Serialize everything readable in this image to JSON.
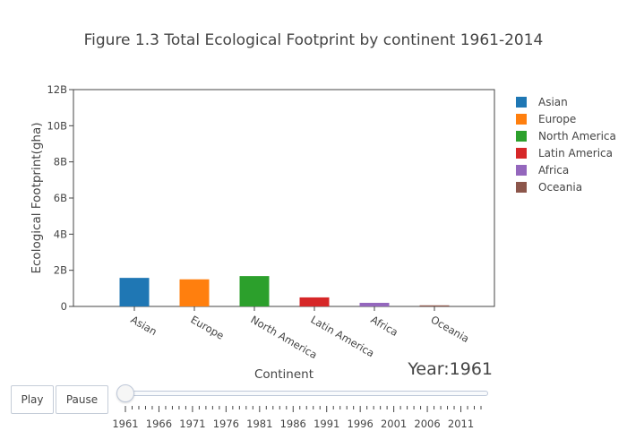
{
  "chart_data": {
    "type": "bar",
    "title": "Figure 1.3 Total Ecological Footprint by continent 1961-2014",
    "xlabel": "Continent",
    "ylabel": "Ecological Footprint(gha)",
    "categories": [
      "Asian",
      "Europe",
      "North America",
      "Latin America",
      "Africa",
      "Oceania"
    ],
    "values": [
      1.58,
      1.5,
      1.68,
      0.5,
      0.2,
      0.06
    ],
    "value_unit": "B",
    "ylim": [
      0,
      12
    ],
    "yticks": [
      "0",
      "2B",
      "4B",
      "6B",
      "8B",
      "10B",
      "12B"
    ],
    "colors": [
      "#1f77b4",
      "#ff7f0e",
      "#2ca02c",
      "#d62728",
      "#9467bd",
      "#8c564b"
    ],
    "legend": {
      "placement": "right",
      "entries": [
        "Asian",
        "Europe",
        "North America",
        "Latin America",
        "Africa",
        "Oceania"
      ]
    },
    "grid": false
  },
  "animation": {
    "frame_label": "Year:1961",
    "current_year": 1961,
    "play_label": "Play",
    "pause_label": "Pause",
    "slider_labels": [
      "1961",
      "1966",
      "1971",
      "1976",
      "1981",
      "1986",
      "1991",
      "1996",
      "2001",
      "2006",
      "2011"
    ],
    "year_range": [
      1961,
      2014
    ]
  }
}
